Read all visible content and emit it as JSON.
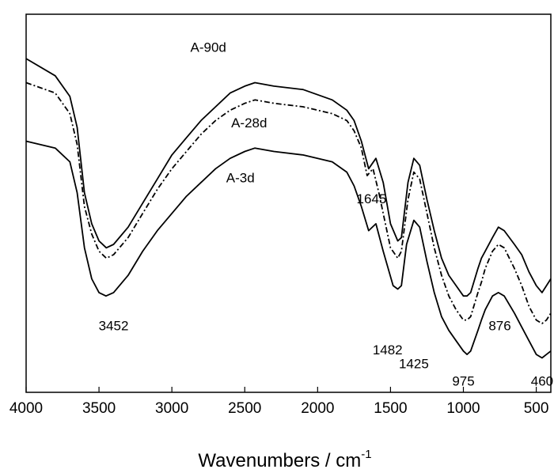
{
  "chart_data": {
    "type": "line",
    "title": "",
    "xlabel": "Wavenumbers / cm",
    "xlabel_superscript": "-1",
    "ylabel": "",
    "xlim": [
      4000,
      400
    ],
    "x_reversed": true,
    "x_ticks": [
      4000,
      3500,
      3000,
      2500,
      2000,
      1500,
      1000,
      500
    ],
    "y_axis_visible": false,
    "grid": false,
    "series": [
      {
        "name": "A-90d",
        "style": "solid",
        "points": [
          [
            4000,
            83
          ],
          [
            3800,
            78
          ],
          [
            3700,
            72
          ],
          [
            3650,
            63
          ],
          [
            3600,
            44
          ],
          [
            3550,
            35
          ],
          [
            3500,
            30
          ],
          [
            3450,
            28
          ],
          [
            3400,
            29
          ],
          [
            3300,
            34
          ],
          [
            3200,
            41
          ],
          [
            3100,
            48
          ],
          [
            3000,
            55
          ],
          [
            2900,
            60
          ],
          [
            2800,
            65
          ],
          [
            2700,
            69
          ],
          [
            2600,
            73
          ],
          [
            2500,
            75
          ],
          [
            2430,
            76
          ],
          [
            2300,
            75
          ],
          [
            2100,
            74
          ],
          [
            1900,
            71
          ],
          [
            1800,
            68
          ],
          [
            1750,
            65
          ],
          [
            1700,
            59
          ],
          [
            1650,
            51
          ],
          [
            1600,
            54
          ],
          [
            1550,
            47
          ],
          [
            1500,
            35
          ],
          [
            1450,
            30
          ],
          [
            1425,
            31
          ],
          [
            1380,
            47
          ],
          [
            1340,
            54
          ],
          [
            1300,
            52
          ],
          [
            1250,
            42
          ],
          [
            1200,
            33
          ],
          [
            1150,
            25
          ],
          [
            1100,
            20
          ],
          [
            1050,
            17
          ],
          [
            1000,
            14
          ],
          [
            975,
            14
          ],
          [
            950,
            15
          ],
          [
            900,
            22
          ],
          [
            876,
            25
          ],
          [
            850,
            27
          ],
          [
            800,
            31
          ],
          [
            760,
            34
          ],
          [
            720,
            33
          ],
          [
            650,
            29
          ],
          [
            600,
            26
          ],
          [
            550,
            21
          ],
          [
            500,
            17
          ],
          [
            460,
            15
          ],
          [
            430,
            17
          ],
          [
            400,
            19
          ]
        ]
      },
      {
        "name": "A-28d",
        "style": "dash-dot",
        "points": [
          [
            4000,
            76
          ],
          [
            3800,
            73
          ],
          [
            3700,
            67
          ],
          [
            3650,
            58
          ],
          [
            3600,
            40
          ],
          [
            3550,
            32
          ],
          [
            3500,
            27
          ],
          [
            3450,
            25
          ],
          [
            3400,
            26
          ],
          [
            3300,
            31
          ],
          [
            3200,
            38
          ],
          [
            3100,
            45
          ],
          [
            3000,
            51
          ],
          [
            2900,
            56
          ],
          [
            2800,
            61
          ],
          [
            2700,
            65
          ],
          [
            2600,
            68
          ],
          [
            2500,
            70
          ],
          [
            2430,
            71
          ],
          [
            2300,
            70
          ],
          [
            2100,
            69
          ],
          [
            1900,
            67
          ],
          [
            1800,
            65
          ],
          [
            1750,
            62
          ],
          [
            1700,
            57
          ],
          [
            1660,
            49
          ],
          [
            1620,
            51
          ],
          [
            1580,
            44
          ],
          [
            1500,
            28
          ],
          [
            1450,
            25
          ],
          [
            1425,
            27
          ],
          [
            1380,
            42
          ],
          [
            1340,
            50
          ],
          [
            1300,
            48
          ],
          [
            1250,
            38
          ],
          [
            1200,
            28
          ],
          [
            1150,
            20
          ],
          [
            1100,
            14
          ],
          [
            1050,
            10
          ],
          [
            1000,
            7
          ],
          [
            975,
            7
          ],
          [
            950,
            8
          ],
          [
            900,
            15
          ],
          [
            876,
            18
          ],
          [
            850,
            22
          ],
          [
            800,
            27
          ],
          [
            760,
            29
          ],
          [
            720,
            28
          ],
          [
            650,
            22
          ],
          [
            600,
            17
          ],
          [
            550,
            11
          ],
          [
            500,
            7
          ],
          [
            460,
            6
          ],
          [
            430,
            7
          ],
          [
            400,
            9
          ]
        ]
      },
      {
        "name": "A-3d",
        "style": "solid",
        "points": [
          [
            4000,
            59
          ],
          [
            3800,
            57
          ],
          [
            3700,
            53
          ],
          [
            3650,
            44
          ],
          [
            3600,
            28
          ],
          [
            3550,
            19
          ],
          [
            3500,
            15
          ],
          [
            3452,
            14
          ],
          [
            3400,
            15
          ],
          [
            3300,
            20
          ],
          [
            3200,
            27
          ],
          [
            3100,
            33
          ],
          [
            3000,
            38
          ],
          [
            2900,
            43
          ],
          [
            2800,
            47
          ],
          [
            2700,
            51
          ],
          [
            2600,
            54
          ],
          [
            2500,
            56
          ],
          [
            2430,
            57
          ],
          [
            2300,
            56
          ],
          [
            2100,
            55
          ],
          [
            1900,
            53
          ],
          [
            1800,
            50
          ],
          [
            1750,
            46
          ],
          [
            1700,
            40
          ],
          [
            1650,
            33
          ],
          [
            1600,
            35
          ],
          [
            1550,
            27
          ],
          [
            1482,
            17
          ],
          [
            1450,
            16
          ],
          [
            1425,
            17
          ],
          [
            1390,
            29
          ],
          [
            1340,
            36
          ],
          [
            1300,
            34
          ],
          [
            1250,
            24
          ],
          [
            1200,
            15
          ],
          [
            1150,
            8
          ],
          [
            1100,
            4
          ],
          [
            1050,
            1
          ],
          [
            1000,
            -2
          ],
          [
            975,
            -3
          ],
          [
            950,
            -2
          ],
          [
            900,
            4
          ],
          [
            876,
            7
          ],
          [
            850,
            10
          ],
          [
            800,
            14
          ],
          [
            760,
            15
          ],
          [
            720,
            14
          ],
          [
            650,
            9
          ],
          [
            600,
            5
          ],
          [
            550,
            1
          ],
          [
            500,
            -3
          ],
          [
            460,
            -4
          ],
          [
            430,
            -3
          ],
          [
            400,
            -2
          ]
        ]
      }
    ],
    "series_labels": [
      {
        "text": "A-90d",
        "x": 2750,
        "y": 85
      },
      {
        "text": "A-28d",
        "x": 2470,
        "y": 63
      },
      {
        "text": "A-3d",
        "x": 2530,
        "y": 47
      }
    ],
    "annotations": [
      {
        "text": "3452",
        "x": 3400,
        "y": 4
      },
      {
        "text": "1645",
        "x": 1630,
        "y": 41
      },
      {
        "text": "1482",
        "x": 1520,
        "y": -3
      },
      {
        "text": "1425",
        "x": 1340,
        "y": -7
      },
      {
        "text": "975",
        "x": 1000,
        "y": -12
      },
      {
        "text": "876",
        "x": 750,
        "y": 4
      },
      {
        "text": "460",
        "x": 460,
        "y": -12
      }
    ]
  }
}
